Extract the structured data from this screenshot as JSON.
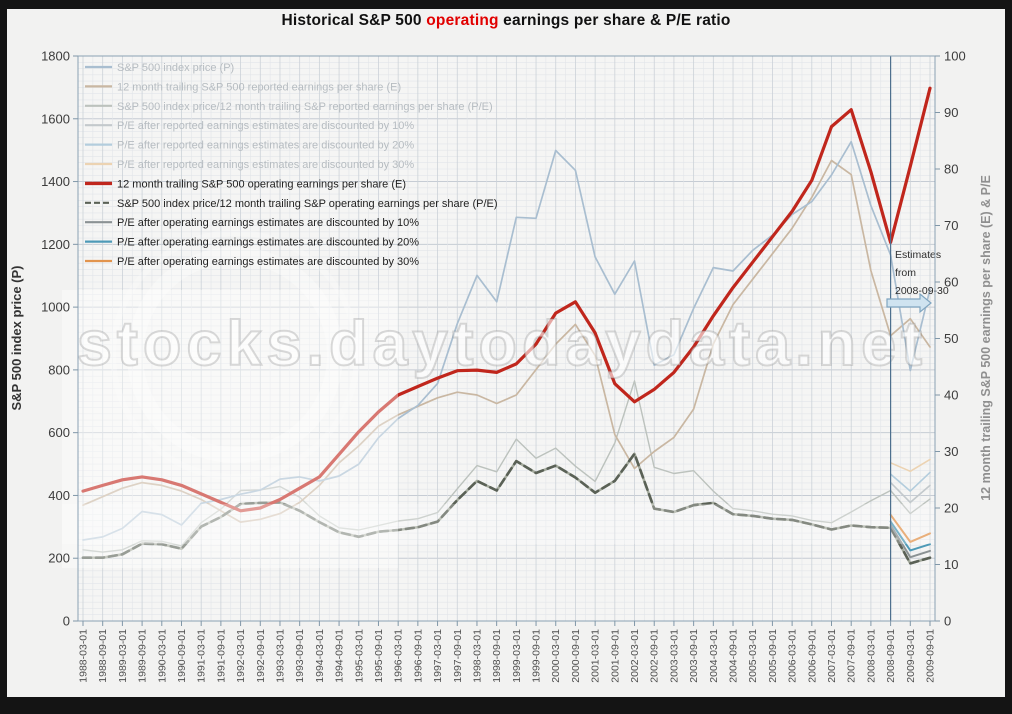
{
  "title": {
    "prefix": "Historical S&P 500 ",
    "highlight": "operating",
    "suffix": " earnings per share & P/E ratio"
  },
  "watermark": {
    "main": "stocks.daytodaydata.net"
  },
  "colors": {
    "frame": "#141414",
    "canvas": "#f2f2f1",
    "plot_bg": "#f5f5f4",
    "grid_minor": "#e2e5e9",
    "grid_major_h": "#c6ccd4",
    "grid_major_v": "#ccd2d8",
    "plot_border": "#8ba1b4",
    "tick": "#8097a8",
    "tick_label": "#3c3c3c",
    "x_label": "#4f4f4f",
    "title_highlight": "#e10000",
    "legend_ghost_text": "#b6bcc1",
    "legend_active_text": "#1f1f1f",
    "annotation_line": "#4e6f8e",
    "arrow_fill": "#cfe3f0",
    "arrow_stroke": "#7fa5c0"
  },
  "chart_data": {
    "type": "line",
    "title": "Historical S&P 500 operating earnings per share & P/E ratio",
    "grid": "on",
    "legend_position": "top-left-inside",
    "left_axis": {
      "title": "S&P 500 index price (P)",
      "min": 0,
      "max": 1800,
      "step": 200
    },
    "right_axis": {
      "title": "12 month trailing S&P 500 earnings per share (E) & P/E",
      "min": 0,
      "max": 100,
      "step": 10
    },
    "annotation": {
      "lines": [
        "Estimates",
        "from",
        "2008-09-30"
      ],
      "at_label": "2008-09-01"
    },
    "x_labels": [
      "1988-03-01",
      "1988-09-01",
      "1989-03-01",
      "1989-09-01",
      "1990-03-01",
      "1990-09-01",
      "1991-03-01",
      "1991-09-01",
      "1992-03-01",
      "1992-09-01",
      "1993-03-01",
      "1993-09-01",
      "1994-03-01",
      "1994-09-01",
      "1995-03-01",
      "1995-09-01",
      "1996-03-01",
      "1996-09-01",
      "1997-03-01",
      "1997-09-01",
      "1998-03-01",
      "1998-09-01",
      "1999-03-01",
      "1999-09-01",
      "2000-03-01",
      "2000-09-01",
      "2001-03-01",
      "2001-09-01",
      "2002-03-01",
      "2002-09-01",
      "2003-03-01",
      "2003-09-01",
      "2004-03-01",
      "2004-09-01",
      "2005-03-01",
      "2005-09-01",
      "2006-03-01",
      "2006-09-01",
      "2007-03-01",
      "2007-09-01",
      "2008-03-01",
      "2008-09-01",
      "2009-03-01",
      "2009-09-01"
    ],
    "series": [
      {
        "name": "S&P 500 index price (P)",
        "axis": "left",
        "color": "#a9bed0",
        "width": 1.7,
        "ghost": true,
        "values": [
          258,
          268,
          295,
          349,
          339,
          306,
          375,
          387,
          404,
          417,
          452,
          459,
          446,
          462,
          500,
          584,
          645,
          687,
          757,
          947,
          1101,
          1017,
          1286,
          1283,
          1499,
          1436,
          1160,
          1041,
          1147,
          815,
          848,
          996,
          1126,
          1115,
          1181,
          1229,
          1295,
          1336,
          1421,
          1527,
          1323,
          1166,
          798,
          1057
        ]
      },
      {
        "name": "12 month trailing S&P 500 reported earnings per share (E)",
        "axis": "right",
        "color": "#c9b7a2",
        "width": 1.7,
        "ghost": true,
        "values": [
          20.5,
          22,
          23.5,
          24.5,
          24,
          23,
          21.5,
          19.5,
          17.5,
          18,
          19,
          21,
          24,
          28,
          31,
          34.5,
          36.5,
          38,
          39.5,
          40.5,
          40,
          38.5,
          40,
          44.5,
          49,
          52.5,
          47,
          33,
          27,
          30,
          32.5,
          37.5,
          49,
          56,
          60.5,
          65,
          69.5,
          75,
          81.5,
          79,
          62,
          50.5,
          53.5,
          48.5
        ]
      },
      {
        "name": "S&P 500 index price/12 month trailing S&P reported earnings per share (P/E)",
        "axis": "right",
        "color": "#bcc2bd",
        "width": 1.4,
        "ghost": true,
        "values": [
          12.6,
          12.2,
          12.6,
          14.2,
          14.1,
          13.3,
          17.4,
          19.8,
          23.1,
          23.2,
          23.8,
          21.9,
          18.6,
          16.5,
          16.1,
          16.9,
          17.7,
          18.1,
          19.2,
          23.4,
          27.5,
          26.4,
          32.2,
          28.8,
          30.6,
          27.4,
          24.7,
          31.5,
          42.5,
          27.2,
          26.1,
          26.6,
          23,
          19.9,
          19.5,
          18.9,
          18.6,
          17.8,
          17.4,
          19.3,
          21.3,
          23.1,
          19,
          21.6
        ]
      },
      {
        "name": "P/E after reported earnings estimates are discounted by 10%",
        "axis": "right",
        "color": "#c3c9cc",
        "width": 1.6,
        "ghost": true,
        "start": 41,
        "values": [
          24.5,
          21,
          24
        ]
      },
      {
        "name": "P/E after reported earnings estimates are discounted by 20%",
        "axis": "right",
        "color": "#b3cddd",
        "width": 1.6,
        "ghost": true,
        "start": 41,
        "values": [
          26,
          23,
          26.3
        ]
      },
      {
        "name": "P/E after reported earnings estimates are discounted by 30%",
        "axis": "right",
        "color": "#ecd3b2",
        "width": 1.6,
        "ghost": true,
        "start": 41,
        "values": [
          28,
          26.5,
          28.6
        ]
      },
      {
        "name": "12 month trailing S&P 500 operating earnings per share (E)",
        "axis": "right",
        "color": "#c0261c",
        "width": 3.2,
        "ghost": false,
        "values": [
          23,
          24,
          25,
          25.5,
          25,
          24,
          22.5,
          21,
          19.5,
          20,
          21.5,
          23.5,
          25.5,
          29.5,
          33.5,
          37,
          40,
          41.5,
          43,
          44.3,
          44.4,
          44,
          45.5,
          49,
          54.5,
          56.5,
          51,
          42,
          38.8,
          41,
          44,
          48.5,
          54,
          59,
          63.5,
          68,
          72.5,
          78,
          87.5,
          90.5,
          79.5,
          67,
          80.5,
          94.3
        ]
      },
      {
        "name": "S&P 500 index price/12 month trailing S&P operating earnings per share (P/E)",
        "axis": "right",
        "color": "#5a6156",
        "width": 2.6,
        "ghost": false,
        "dash": true,
        "underlay": "#a6ac9f",
        "values": [
          11.2,
          11.2,
          11.8,
          13.7,
          13.6,
          12.8,
          16.7,
          18.4,
          20.7,
          20.9,
          21,
          19.5,
          17.5,
          15.7,
          14.9,
          15.8,
          16.1,
          16.6,
          17.6,
          21.4,
          24.8,
          23.1,
          28.3,
          26.2,
          27.5,
          25.4,
          22.7,
          24.8,
          29.6,
          19.9,
          19.3,
          20.5,
          20.9,
          18.9,
          18.6,
          18.1,
          17.9,
          17.1,
          16.2,
          16.9,
          16.6,
          16.5,
          10.2,
          11.2
        ]
      },
      {
        "name": "P/E after operating earnings estimates are discounted by 10%",
        "axis": "right",
        "color": "#8b9294",
        "width": 2,
        "ghost": false,
        "start": 41,
        "values": [
          17,
          11.3,
          12.4
        ]
      },
      {
        "name": "P/E after operating earnings estimates are discounted by 20%",
        "axis": "right",
        "color": "#4e9ab7",
        "width": 2,
        "ghost": false,
        "start": 41,
        "values": [
          17.6,
          12.5,
          13.6
        ]
      },
      {
        "name": "P/E after operating earnings estimates are discounted by 30%",
        "axis": "right",
        "color": "#e2944d",
        "width": 2,
        "ghost": false,
        "start": 41,
        "values": [
          18.8,
          14,
          15.5
        ]
      }
    ]
  }
}
